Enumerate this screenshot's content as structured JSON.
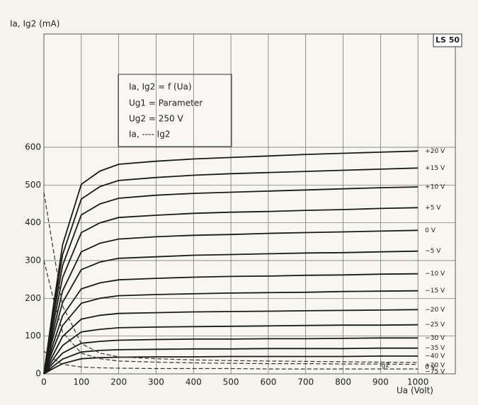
{
  "chart_data": {
    "type": "line",
    "title": "Ia, Ig2 (mA)",
    "x_label": "Ua (Volt)",
    "tube_label": "LS 50",
    "legend_lines": [
      "Ia, Ig2 = f (Ua)",
      "Ug1 = Parameter",
      "Ug2 = 250 V",
      "Ia, ---- Ig2"
    ],
    "annotation": "Ig2",
    "x": [
      0,
      25,
      50,
      100,
      150,
      200,
      300,
      400,
      500,
      600,
      700,
      800,
      900,
      1000
    ],
    "xlim": [
      0,
      1100
    ],
    "ylim": [
      0,
      900
    ],
    "xticks": [
      0,
      100,
      200,
      300,
      400,
      500,
      600,
      700,
      800,
      900,
      1000
    ],
    "yticks": [
      0,
      100,
      200,
      300,
      400,
      500,
      600
    ],
    "grid": true,
    "series": [
      {
        "name": "+20 V",
        "color": "#1a1a1a",
        "dash": false,
        "values": [
          0,
          177,
          342,
          502,
          537,
          555,
          563,
          569,
          573,
          577,
          581,
          584,
          587,
          590
        ]
      },
      {
        "name": "+15 V",
        "color": "#1a1a1a",
        "dash": false,
        "values": [
          0,
          164,
          316,
          463,
          496,
          512,
          520,
          526,
          530,
          533,
          536,
          539,
          542,
          545
        ]
      },
      {
        "name": "+10 V",
        "color": "#1a1a1a",
        "dash": false,
        "values": [
          0,
          149,
          287,
          421,
          450,
          465,
          473,
          478,
          481,
          484,
          487,
          490,
          493,
          495
        ]
      },
      {
        "name": "+5 V",
        "color": "#1a1a1a",
        "dash": false,
        "values": [
          0,
          132,
          255,
          374,
          400,
          414,
          420,
          425,
          428,
          430,
          433,
          435,
          438,
          440
        ]
      },
      {
        "name": "0 V",
        "color": "#1a1a1a",
        "dash": false,
        "values": [
          0,
          114,
          220,
          323,
          346,
          357,
          363,
          367,
          369,
          372,
          374,
          376,
          378,
          380
        ]
      },
      {
        "name": "−5 V",
        "color": "#1a1a1a",
        "dash": false,
        "values": [
          0,
          98,
          189,
          276,
          296,
          306,
          310,
          314,
          316,
          318,
          320,
          321,
          323,
          325
        ]
      },
      {
        "name": "−10 V",
        "color": "#1a1a1a",
        "dash": false,
        "values": [
          0,
          80,
          154,
          225,
          241,
          249,
          253,
          256,
          258,
          259,
          261,
          262,
          264,
          265
        ]
      },
      {
        "name": "−15 V",
        "color": "#1a1a1a",
        "dash": false,
        "values": [
          0,
          66,
          128,
          187,
          200,
          207,
          210,
          212,
          214,
          215,
          216,
          218,
          219,
          220
        ]
      },
      {
        "name": "−20 V",
        "color": "#1a1a1a",
        "dash": false,
        "values": [
          0,
          51,
          99,
          145,
          155,
          160,
          162,
          164,
          165,
          166,
          167,
          168,
          169,
          170
        ]
      },
      {
        "name": "−25 V",
        "color": "#1a1a1a",
        "dash": false,
        "values": [
          0,
          39,
          75,
          111,
          118,
          122,
          124,
          125,
          126,
          127,
          128,
          129,
          129,
          130
        ]
      },
      {
        "name": "−30 V",
        "color": "#1a1a1a",
        "dash": false,
        "values": [
          0,
          29,
          55,
          81,
          86,
          89,
          91,
          92,
          92,
          93,
          93,
          94,
          95,
          95
        ]
      },
      {
        "name": "−35 V",
        "color": "#1a1a1a",
        "dash": false,
        "values": [
          0,
          20,
          39,
          58,
          62,
          64,
          65,
          66,
          66,
          67,
          67,
          67,
          68,
          68
        ]
      },
      {
        "name": "−40 V",
        "color": "#1a1a1a",
        "dash": false,
        "values": [
          0,
          14,
          27,
          40,
          43,
          44,
          45,
          45,
          46,
          46,
          46,
          46,
          47,
          47
        ]
      },
      {
        "name": "+20 V",
        "color": "#333333",
        "dash": true,
        "values": [
          480,
          330,
          180,
          80,
          55,
          45,
          40,
          37,
          35,
          34,
          33,
          32,
          31,
          30
        ]
      },
      {
        "name": "0 V",
        "color": "#333333",
        "dash": true,
        "values": [
          300,
          200,
          110,
          55,
          40,
          34,
          31,
          29,
          28,
          27,
          27,
          26,
          26,
          25
        ]
      },
      {
        "name": "−75 V",
        "color": "#333333",
        "dash": true,
        "values": [
          60,
          40,
          25,
          18,
          16,
          15,
          14,
          14,
          14,
          13,
          13,
          13,
          13,
          13
        ]
      }
    ]
  }
}
